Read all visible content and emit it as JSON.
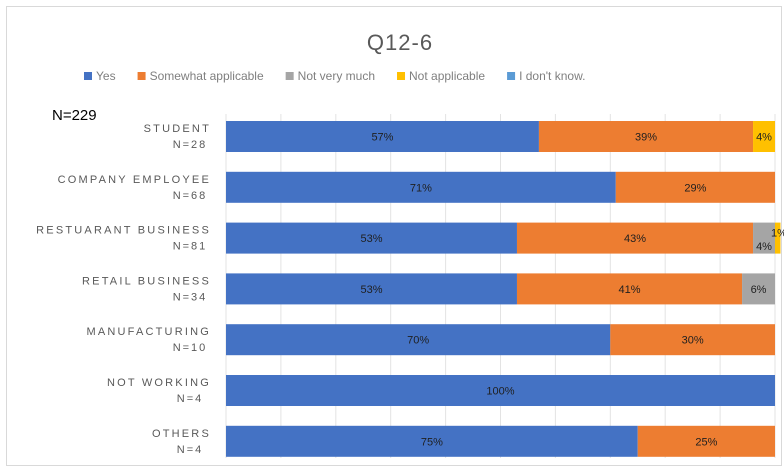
{
  "chart_data": {
    "type": "bar",
    "orientation": "horizontal",
    "stacked": true,
    "percent_stacked": true,
    "title": "Q12-6",
    "sample_note": "N=229",
    "xlim": [
      0,
      100
    ],
    "grid": true,
    "legend_position": "top",
    "categories": [
      {
        "name": "STUDENT",
        "n": "N=28"
      },
      {
        "name": "COMPANY EMPLOYEE",
        "n": "N=68"
      },
      {
        "name": "RESTUARANT BUSINESS",
        "n": "N=81"
      },
      {
        "name": "RETAIL BUSINESS",
        "n": "N=34"
      },
      {
        "name": "MANUFACTURING",
        "n": "N=10"
      },
      {
        "name": "NOT WORKING",
        "n": "N=4"
      },
      {
        "name": "OTHERS",
        "n": "N=4"
      }
    ],
    "series": [
      {
        "name": "Yes",
        "color": "#4472c4",
        "values": [
          57,
          71,
          53,
          53,
          70,
          100,
          75
        ],
        "labels": [
          "57%",
          "71%",
          "53%",
          "53%",
          "70%",
          "100%",
          "75%"
        ]
      },
      {
        "name": "Somewhat applicable",
        "color": "#ed7d31",
        "values": [
          39,
          29,
          43,
          41,
          30,
          0,
          25
        ],
        "labels": [
          "39%",
          "29%",
          "43%",
          "41%",
          "30%",
          "",
          "25%"
        ]
      },
      {
        "name": "Not very much",
        "color": "#a5a5a5",
        "values": [
          0,
          0,
          4,
          6,
          0,
          0,
          0
        ],
        "labels": [
          "",
          "",
          "4%",
          "6%",
          "",
          "",
          ""
        ]
      },
      {
        "name": "Not applicable",
        "color": "#ffc000",
        "values": [
          4,
          0,
          1,
          0,
          0,
          0,
          0
        ],
        "labels": [
          "4%",
          "",
          "1%",
          "",
          "",
          "",
          ""
        ]
      },
      {
        "name": "I don't know.",
        "color": "#5b9bd5",
        "values": [
          0,
          0,
          0,
          0,
          0,
          0,
          0
        ],
        "labels": [
          "",
          "",
          "",
          "",
          "",
          "",
          ""
        ]
      }
    ]
  }
}
